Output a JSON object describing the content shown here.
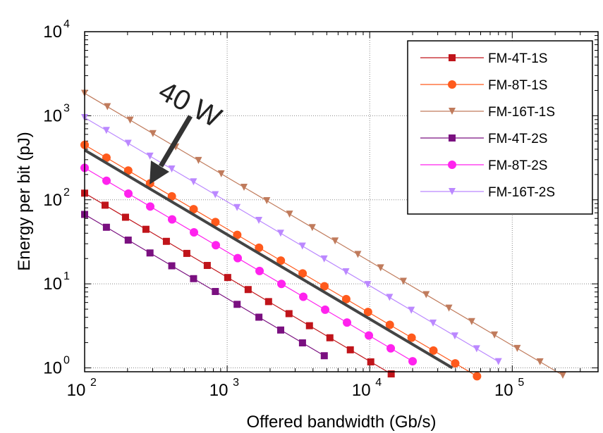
{
  "chart_data": {
    "type": "line",
    "xlabel": "Offered bandwidth (Gb/s)",
    "ylabel": "Energy per bit (pJ)",
    "x_scale": "log",
    "y_scale": "log",
    "xlim": [
      100,
      400000
    ],
    "ylim": [
      0.9,
      10000
    ],
    "x_ticks": [
      {
        "value": 100,
        "base": "10",
        "exp": "2"
      },
      {
        "value": 1000,
        "base": "10",
        "exp": "3"
      },
      {
        "value": 10000,
        "base": "10",
        "exp": "4"
      },
      {
        "value": 100000,
        "base": "10",
        "exp": "5"
      }
    ],
    "y_ticks": [
      {
        "value": 1,
        "base": "10",
        "exp": "0"
      },
      {
        "value": 10,
        "base": "10",
        "exp": "1"
      },
      {
        "value": 100,
        "base": "10",
        "exp": "2"
      },
      {
        "value": 1000,
        "base": "10",
        "exp": "3"
      },
      {
        "value": 10000,
        "base": "10",
        "exp": "4"
      }
    ],
    "grid": true,
    "legend_position": "top-right",
    "series": [
      {
        "name": "FM-4T-1S",
        "color": "#c0141a",
        "marker": "square",
        "x_start": 100,
        "x_end": 14150,
        "y_start": 120,
        "points": 16
      },
      {
        "name": "FM-8T-1S",
        "color": "#ff5a1c",
        "marker": "circle",
        "x_start": 100,
        "x_end": 56600,
        "y_start": 450,
        "points": 19
      },
      {
        "name": "FM-16T-1S",
        "color": "#c07b5c",
        "marker": "triangle-down",
        "x_start": 100,
        "x_end": 226300,
        "y_start": 1850,
        "points": 22
      },
      {
        "name": "FM-4T-2S",
        "color": "#7a1080",
        "marker": "square",
        "x_start": 100,
        "x_end": 4800,
        "y_start": 67,
        "points": 12
      },
      {
        "name": "FM-8T-2S",
        "color": "#ff22ee",
        "marker": "circle",
        "x_start": 100,
        "x_end": 20000,
        "y_start": 240,
        "points": 16
      },
      {
        "name": "FM-16T-2S",
        "color": "#bb88ff",
        "marker": "triangle-down",
        "x_start": 100,
        "x_end": 80000,
        "y_start": 950,
        "points": 20
      }
    ],
    "reference_line": {
      "x": [
        100,
        38000
      ],
      "y": [
        390,
        1.0
      ],
      "color": "#444444"
    },
    "annotation": {
      "text": "40 W",
      "arrow_to": {
        "x": 200,
        "y": 120
      }
    }
  }
}
